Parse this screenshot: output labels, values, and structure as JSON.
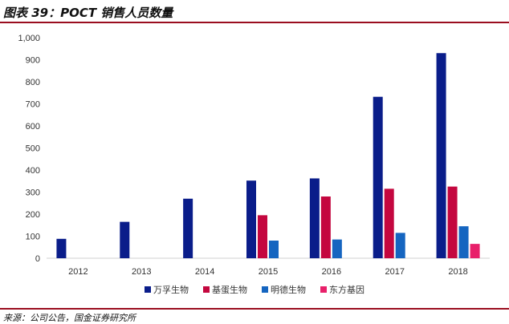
{
  "header": {
    "title": "图表 39：POCT 销售人员数量"
  },
  "footer": {
    "source": "来源：公司公告，国金证券研究所"
  },
  "chart_data": {
    "type": "bar",
    "categories": [
      "2012",
      "2013",
      "2014",
      "2015",
      "2016",
      "2017",
      "2018"
    ],
    "series": [
      {
        "name": "万孚生物",
        "color": "#0a1d8a",
        "values": [
          88,
          165,
          270,
          352,
          362,
          732,
          930
        ]
      },
      {
        "name": "基蛋生物",
        "color": "#c4073f",
        "values": [
          null,
          null,
          null,
          195,
          280,
          315,
          325
        ]
      },
      {
        "name": "明德生物",
        "color": "#1565c0",
        "values": [
          null,
          null,
          null,
          80,
          85,
          115,
          145
        ]
      },
      {
        "name": "东方基因",
        "color": "#e8206a",
        "values": [
          null,
          null,
          null,
          null,
          null,
          null,
          65
        ]
      }
    ],
    "ylim": [
      0,
      1000
    ],
    "yticks": [
      "0",
      "100",
      "200",
      "300",
      "400",
      "500",
      "600",
      "700",
      "800",
      "900",
      "1,000"
    ],
    "grid": false,
    "legend_position": "bottom"
  }
}
